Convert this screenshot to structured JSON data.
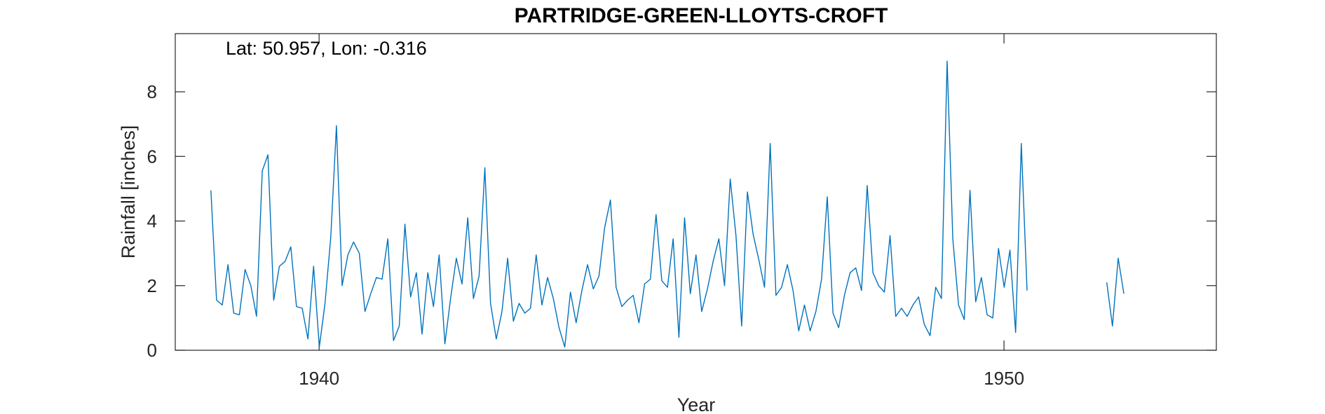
{
  "colors": {
    "series": "#0072BD",
    "axes": "#262626"
  },
  "chart_data": {
    "type": "line",
    "title": "PARTRIDGE-GREEN-LLOYTS-CROFT",
    "annotation": "Lat: 50.957, Lon: -0.316",
    "xlabel": "Year",
    "ylabel": "Rainfall [inches]",
    "xlim": [
      1937.9,
      1953.1
    ],
    "ylim": [
      0,
      9.8
    ],
    "xticks": [
      1940,
      1950
    ],
    "xtick_labels": [
      "1940",
      "1950"
    ],
    "yticks": [
      0,
      2,
      4,
      6,
      8
    ],
    "ytick_labels": [
      "0",
      "2",
      "4",
      "6",
      "8"
    ],
    "grid": false,
    "series": [
      {
        "x_start": 1938.42,
        "x_step": 0.08333,
        "values": [
          4.95,
          1.55,
          1.4,
          2.65,
          1.15,
          1.1,
          2.5,
          2.0,
          1.05,
          5.55,
          6.05,
          1.55,
          2.6,
          2.75,
          3.2,
          1.35,
          1.3,
          0.35,
          2.6,
          0.1,
          1.45,
          3.5,
          6.95,
          2.0,
          2.95,
          3.35,
          3.0,
          1.2,
          1.75,
          2.25,
          2.2,
          3.45,
          0.3,
          0.75,
          3.9,
          1.65,
          2.4,
          0.5,
          2.4,
          1.35,
          2.95,
          0.2,
          1.6,
          2.85,
          2.05,
          4.1,
          1.6,
          2.3,
          5.65,
          1.45,
          0.35,
          1.2,
          2.85,
          0.9,
          1.45,
          1.15,
          1.3,
          2.95,
          1.4,
          2.25,
          1.6,
          0.7,
          0.1,
          1.8,
          0.85,
          1.85,
          2.65,
          1.9,
          2.3,
          3.8,
          4.65,
          1.95,
          1.35,
          1.55,
          1.7,
          0.85,
          2.05,
          2.2,
          4.2,
          2.15,
          1.95,
          3.45,
          0.4,
          4.1,
          1.75,
          2.95,
          1.2,
          1.9,
          2.75,
          3.45,
          2.0,
          5.3,
          3.55,
          0.75,
          4.9,
          3.6,
          2.8,
          1.95,
          6.4,
          1.7,
          1.95,
          2.65,
          1.85,
          0.6,
          1.4,
          0.6,
          1.2,
          2.2,
          4.75,
          1.15,
          0.7,
          1.7,
          2.4,
          2.55,
          1.85,
          5.1,
          2.4,
          2.0,
          1.8,
          3.55,
          1.05,
          1.3,
          1.05,
          1.4,
          1.65,
          0.8,
          0.45,
          1.95,
          1.6,
          8.95,
          3.45,
          1.4,
          0.95,
          4.95,
          1.5,
          2.25,
          1.1,
          1.0,
          3.15,
          1.95,
          3.1,
          0.55,
          6.4,
          1.85
        ]
      },
      {
        "x_start": 1951.5,
        "x_step": 0.08333,
        "values": [
          2.1,
          0.75,
          2.85,
          1.75
        ]
      }
    ]
  }
}
